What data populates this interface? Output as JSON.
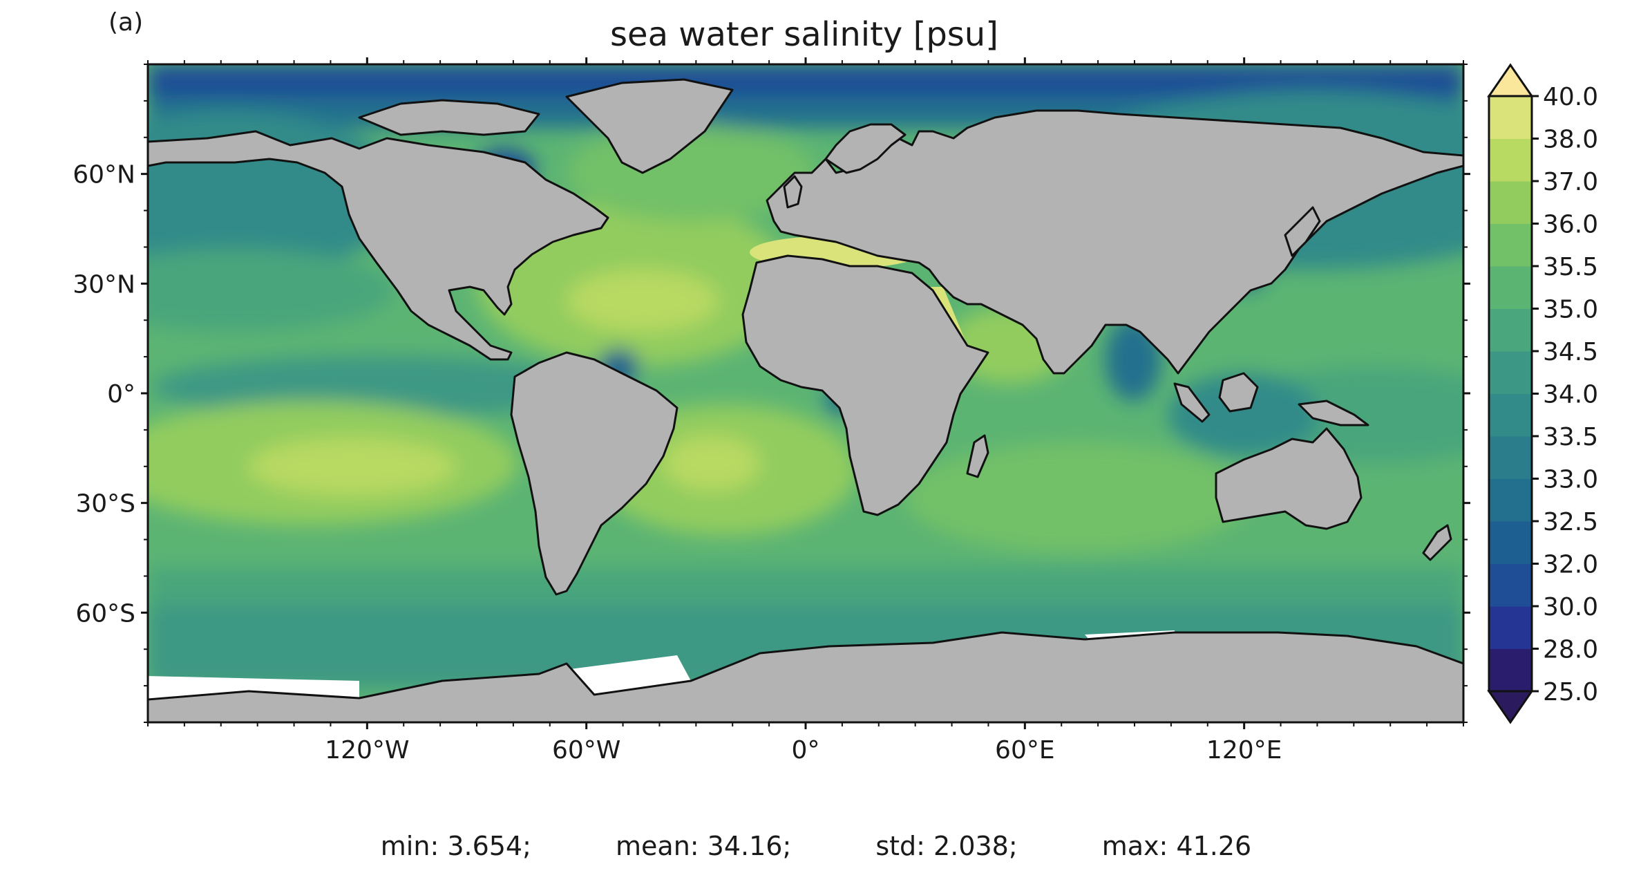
{
  "panel_label": "(a)",
  "title": "sea water salinity [psu]",
  "colors": {
    "land": "#b3b3b3",
    "coastline": "#111111",
    "ice": "#ffffff"
  },
  "map": {
    "projection": "plate carree",
    "lon_range": [
      -180,
      180
    ],
    "lat_range": [
      -90,
      90
    ],
    "lat_ticks": [
      {
        "value": 60,
        "label": "60°N"
      },
      {
        "value": 30,
        "label": "30°N"
      },
      {
        "value": 0,
        "label": "0°"
      },
      {
        "value": -30,
        "label": "30°S"
      },
      {
        "value": -60,
        "label": "60°S"
      }
    ],
    "lon_ticks": [
      {
        "value": -120,
        "label": "120°W"
      },
      {
        "value": -60,
        "label": "60°W"
      },
      {
        "value": 0,
        "label": "0°"
      },
      {
        "value": 60,
        "label": "60°E"
      },
      {
        "value": 120,
        "label": "120°E"
      }
    ]
  },
  "colorbar": {
    "levels": [
      "25.0",
      "28.0",
      "30.0",
      "32.0",
      "32.5",
      "33.0",
      "33.5",
      "34.0",
      "34.5",
      "35.0",
      "35.5",
      "36.0",
      "37.0",
      "38.0",
      "40.0"
    ],
    "colors": [
      "#2a1d6e",
      "#243594",
      "#1f4e96",
      "#1d5f90",
      "#226f8e",
      "#2b7d8c",
      "#338b89",
      "#3c9884",
      "#4aa67c",
      "#5cb473",
      "#72c067",
      "#92cc5e",
      "#b8d962",
      "#d9e37a"
    ],
    "extend_low_color": "#2b1b5e",
    "extend_high_color": "#fbe79b"
  },
  "stats": {
    "min": "min: 3.654;",
    "mean": "mean: 34.16;",
    "std": "std: 2.038;",
    "max": "max: 41.26"
  }
}
